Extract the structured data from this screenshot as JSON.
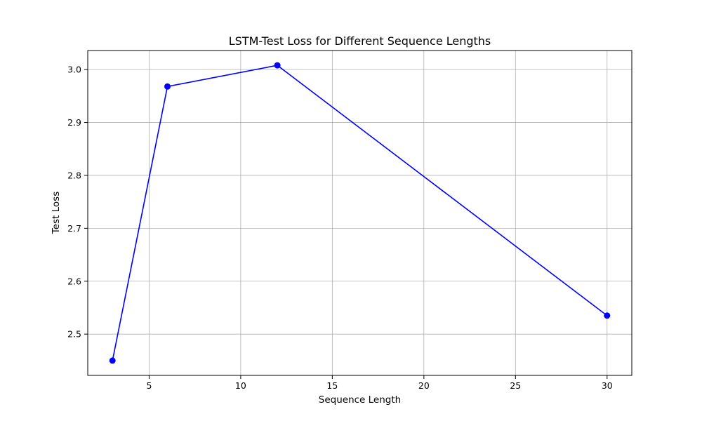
{
  "chart_data": {
    "type": "line",
    "title": "LSTM-Test Loss for Different Sequence Lengths",
    "xlabel": "Sequence Length",
    "ylabel": "Test Loss",
    "x": [
      3,
      6,
      12,
      30
    ],
    "series": [
      {
        "values": [
          2.45,
          2.968,
          3.008,
          2.535
        ],
        "color": "#0000ff",
        "marker": "circle"
      }
    ],
    "xlim": [
      1.65,
      31.35
    ],
    "ylim": [
      2.422,
      3.036
    ],
    "xticks": [
      5,
      10,
      15,
      20,
      25,
      30
    ],
    "yticks": [
      2.5,
      2.6,
      2.7,
      2.8,
      2.9,
      3.0
    ],
    "xtick_labels": [
      "5",
      "10",
      "15",
      "20",
      "25",
      "30"
    ],
    "ytick_labels": [
      "2.5",
      "2.6",
      "2.7",
      "2.8",
      "2.9",
      "3.0"
    ],
    "grid": true,
    "legend": "none",
    "colors": {
      "axes": "#000000",
      "grid": "#b0b0b0",
      "line": "#0000ff"
    }
  }
}
